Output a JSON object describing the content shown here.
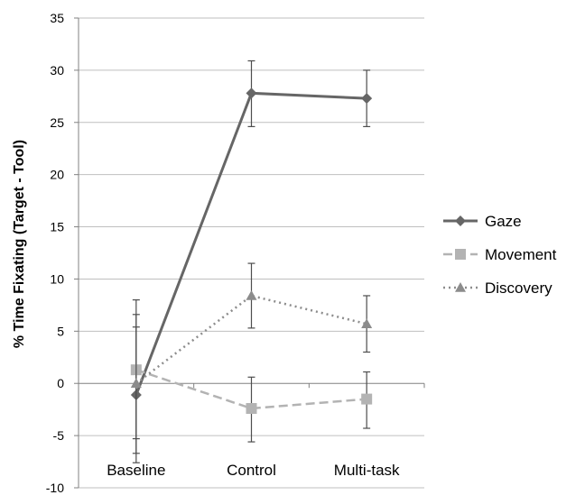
{
  "chart_data": {
    "type": "line",
    "title": "",
    "xlabel": "",
    "ylabel": "% Time Fixating (Target - Tool)",
    "ylim": [
      -10,
      35
    ],
    "ytick_step": 5,
    "yticks": [
      "-10",
      "-5",
      "0",
      "5",
      "10",
      "15",
      "20",
      "25",
      "30",
      "35"
    ],
    "categories": [
      "Baseline",
      "Control",
      "Multi-task"
    ],
    "grid": true,
    "legend_position": "right",
    "series": [
      {
        "name": "Gaze",
        "values": [
          -1.1,
          27.8,
          27.3
        ],
        "error_low": [
          -6.7,
          24.6,
          24.6
        ],
        "error_high": [
          6.6,
          30.9,
          30.0
        ],
        "color": "#666666",
        "line_style": "solid",
        "marker": "diamond"
      },
      {
        "name": "Movement",
        "values": [
          1.3,
          -2.4,
          -1.5
        ],
        "error_low": [
          -5.3,
          -5.6,
          -4.3
        ],
        "error_high": [
          8.0,
          0.6,
          1.1
        ],
        "color": "#b3b3b3",
        "line_style": "dashed",
        "marker": "square"
      },
      {
        "name": "Discovery",
        "values": [
          0.0,
          8.4,
          5.7
        ],
        "error_low": [
          -7.6,
          5.3,
          3.0
        ],
        "error_high": [
          5.4,
          11.5,
          8.4
        ],
        "color": "#8c8c8c",
        "line_style": "dotted",
        "marker": "triangle"
      }
    ]
  }
}
